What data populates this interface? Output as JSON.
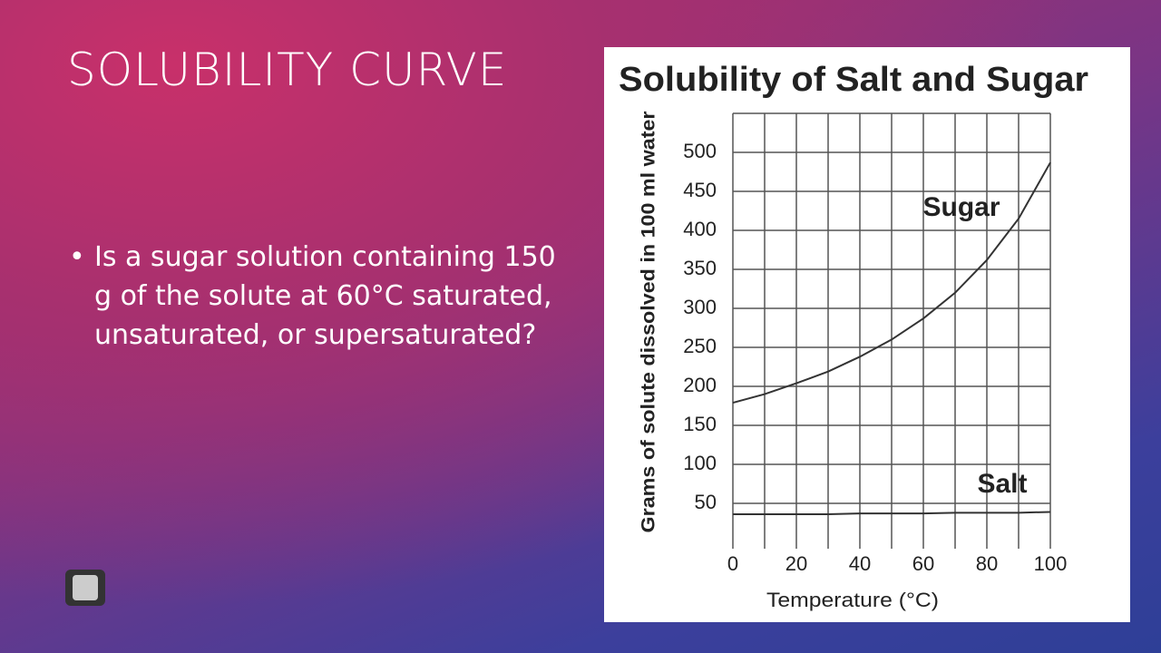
{
  "slide": {
    "title": "SOLUBILITY CURVE",
    "bullets": [
      "Is a sugar solution containing 150 g of the solute at 60°C saturated, unsaturated, or supersaturated?"
    ]
  },
  "chart_data": {
    "type": "line",
    "title": "Solubility of Salt and Sugar",
    "x_label": "Temperature (°C)",
    "y_label": "Grams of solute dissolved in 100 ml water",
    "x": [
      0,
      10,
      20,
      30,
      40,
      50,
      60,
      70,
      80,
      90,
      100
    ],
    "series": [
      {
        "name": "Sugar",
        "color": "#333333",
        "values": [
          179,
          190,
          204,
          219,
          238,
          260,
          287,
          320,
          362,
          415,
          487
        ]
      },
      {
        "name": "Salt",
        "color": "#333333",
        "values": [
          36,
          36,
          36,
          36,
          37,
          37,
          37,
          38,
          38,
          38,
          39
        ]
      }
    ],
    "xlim": [
      0,
      100
    ],
    "xticks": [
      0,
      20,
      40,
      60,
      80,
      100
    ],
    "xminorticks": [
      10,
      30,
      50,
      70,
      90
    ],
    "ylim": [
      0,
      550
    ],
    "yticks": [
      50,
      100,
      150,
      200,
      250,
      300,
      350,
      400,
      450,
      500
    ],
    "grid": true
  }
}
